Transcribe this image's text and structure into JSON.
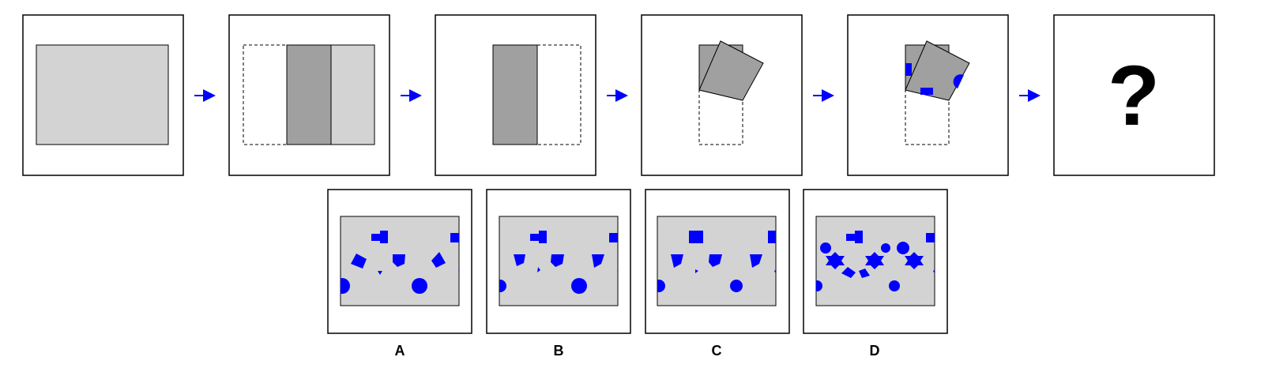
{
  "colors": {
    "paper": "#d3d3d3",
    "fold": "#a0a0a0",
    "hole": "#0000ff",
    "arrow": "#0000ff",
    "frame": "#000000",
    "background": "#ffffff"
  },
  "sequence": {
    "steps": [
      {
        "id": "step-1",
        "content": "unfolded-paper"
      },
      {
        "id": "step-2",
        "content": "fold-left-third"
      },
      {
        "id": "step-3",
        "content": "folded-strip"
      },
      {
        "id": "step-4",
        "content": "fold-diagonal"
      },
      {
        "id": "step-5",
        "content": "punched"
      },
      {
        "id": "step-6",
        "content": "question"
      }
    ],
    "arrow_icon": "arrow-right-icon",
    "question_text": "?"
  },
  "options": [
    {
      "label": "A"
    },
    {
      "label": "B"
    },
    {
      "label": "C"
    },
    {
      "label": "D"
    }
  ]
}
